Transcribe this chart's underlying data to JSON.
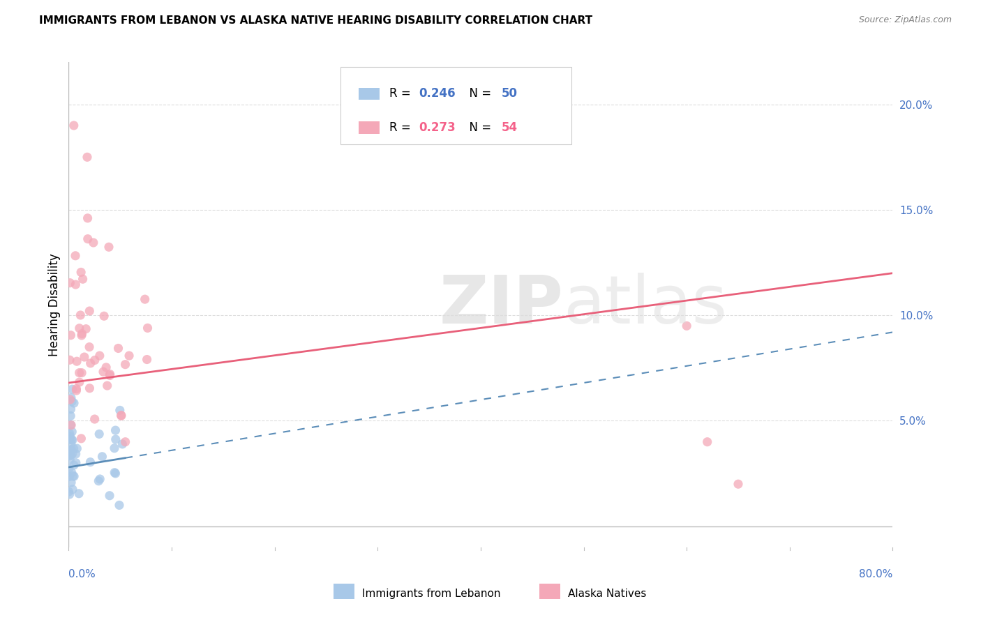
{
  "title": "IMMIGRANTS FROM LEBANON VS ALASKA NATIVE HEARING DISABILITY CORRELATION CHART",
  "source": "Source: ZipAtlas.com",
  "ylabel": "Hearing Disability",
  "color_blue": "#A8C8E8",
  "color_pink": "#F4A8B8",
  "color_blue_line": "#5B8DB8",
  "color_pink_line": "#E8607A",
  "color_blue_dark": "#4472C4",
  "color_pink_dark": "#F4628A",
  "blue_R": "0.246",
  "blue_N": "50",
  "pink_R": "0.273",
  "pink_N": "54",
  "blue_slope": 0.08,
  "blue_intercept": 0.028,
  "pink_slope": 0.065,
  "pink_intercept": 0.068,
  "xmin": 0.0,
  "xmax": 0.8,
  "ymin": -0.01,
  "ymax": 0.22,
  "ytick_vals": [
    0.05,
    0.1,
    0.15,
    0.2
  ],
  "ytick_labels": [
    "5.0%",
    "10.0%",
    "15.0%",
    "20.0%"
  ],
  "watermark_text": "ZIPatlas"
}
